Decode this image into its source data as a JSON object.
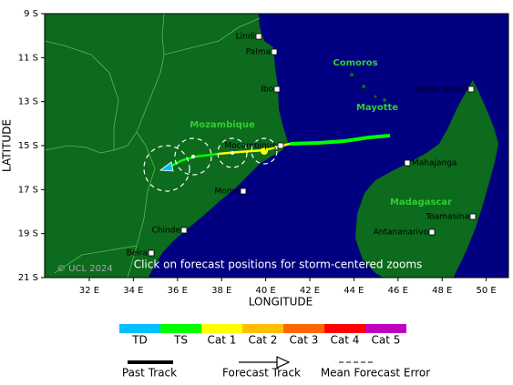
{
  "map": {
    "y_axis_title": "LATITUDE",
    "x_axis_title": "LONGITUDE",
    "lat_labels": [
      "9 S",
      "11 S",
      "13 S",
      "15 S",
      "17 S",
      "19 S",
      "21 S"
    ],
    "lon_labels": [
      "32 E",
      "34 E",
      "36 E",
      "38 E",
      "40 E",
      "42 E",
      "44 E",
      "46 E",
      "48 E",
      "50 E"
    ],
    "countries": [
      "Mozambique",
      "Madagascar",
      "Comoros",
      "Mayotte"
    ],
    "places": [
      "Lindi",
      "Palma",
      "Ibo",
      "Mocambique",
      "Moma",
      "Chinde",
      "Beira",
      "Antseranana",
      "Mahajanga",
      "Toamasina",
      "Antananarivo"
    ],
    "copyright": "© UCL 2024",
    "hint": "Click on forecast positions for storm-centered zooms",
    "ocean_color": "#000080",
    "land_color": "#0c6b1c"
  },
  "legend": {
    "categories": [
      {
        "label": "TD",
        "color": "#00bfff"
      },
      {
        "label": "TS",
        "color": "#00ff00"
      },
      {
        "label": "Cat 1",
        "color": "#ffff00"
      },
      {
        "label": "Cat 2",
        "color": "#ffbf00"
      },
      {
        "label": "Cat 3",
        "color": "#ff6600"
      },
      {
        "label": "Cat 4",
        "color": "#ff0000"
      },
      {
        "label": "Cat 5",
        "color": "#c000c0"
      }
    ],
    "track": [
      "Past Track",
      "Forecast Track",
      "Mean Forecast Error"
    ]
  }
}
